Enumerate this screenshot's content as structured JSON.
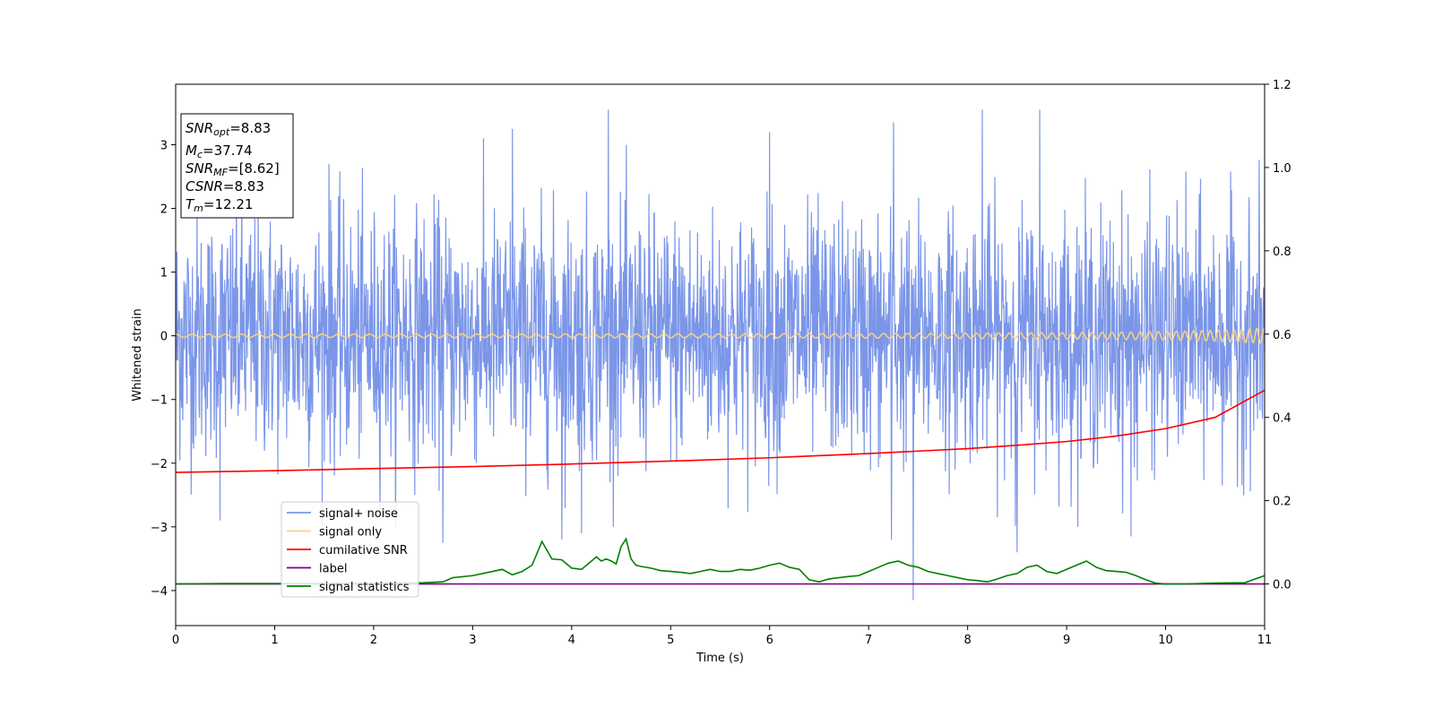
{
  "chart_data": {
    "type": "line",
    "xlabel": "Time (s)",
    "ylabel": "Whitened strain",
    "xlim": [
      0,
      11
    ],
    "ylim_left": [
      -4.55,
      3.95
    ],
    "ylim_right": [
      -0.1,
      1.2
    ],
    "x_ticks": [
      0,
      1,
      2,
      3,
      4,
      5,
      6,
      7,
      8,
      9,
      10,
      11
    ],
    "y_ticks_left": [
      -4,
      -3,
      -2,
      -1,
      0,
      1,
      2,
      3
    ],
    "y_tick_labels_left": [
      "−4",
      "−3",
      "−2",
      "−1",
      "0",
      "1",
      "2",
      "3"
    ],
    "y_ticks_right": [
      0.0,
      0.2,
      0.4,
      0.6,
      0.8,
      1.0,
      1.2
    ],
    "y_tick_labels_right": [
      "0.0",
      "0.2",
      "0.4",
      "0.6",
      "0.8",
      "1.0",
      "1.2"
    ],
    "info_box": {
      "snr_opt": {
        "symbol": "SNR",
        "sub": "opt",
        "value": "=8.83"
      },
      "mc": {
        "symbol": "M",
        "sub": "c",
        "value": "=37.74"
      },
      "snr_mf": {
        "symbol": "SNR",
        "sub": "MF",
        "value": "=[8.62]"
      },
      "csnr": {
        "symbol": "CSNR",
        "value": "=8.83"
      },
      "tm": {
        "symbol": "T",
        "sub": "m",
        "value": "=12.21"
      }
    },
    "legend": {
      "placement": "lower-left",
      "entries": [
        {
          "label": "signal+ noise",
          "color": "#7b96e8"
        },
        {
          "label": "signal only",
          "color": "#ffd27f"
        },
        {
          "label": "cumilative SNR",
          "color": "#ff0000"
        },
        {
          "label": "label",
          "color": "#800080"
        },
        {
          "label": "signal statistics",
          "color": "#008000"
        }
      ]
    },
    "series": [
      {
        "name": "signal+ noise",
        "axis": "left",
        "color": "#7b96e8",
        "description": "whitened strain, noise band ~ +/-2, spikes",
        "noise_sigma": 0.95,
        "spikes": [
          {
            "x": 4.37,
            "y": 3.55
          },
          {
            "x": 8.15,
            "y": 3.55
          },
          {
            "x": 8.73,
            "y": 3.55
          },
          {
            "x": 1.55,
            "y": 2.7
          },
          {
            "x": 3.4,
            "y": 3.25
          },
          {
            "x": 7.25,
            "y": 3.35
          },
          {
            "x": 6.0,
            "y": 3.2
          },
          {
            "x": 7.45,
            "y": -4.15
          },
          {
            "x": 8.5,
            "y": -3.4
          },
          {
            "x": 2.7,
            "y": -3.25
          },
          {
            "x": 3.9,
            "y": -3.2
          },
          {
            "x": 9.65,
            "y": -3.15
          },
          {
            "x": 7.23,
            "y": -3.2
          },
          {
            "x": 0.45,
            "y": -2.9
          },
          {
            "x": 4.1,
            "y": -3.1
          }
        ]
      },
      {
        "name": "signal only",
        "axis": "left",
        "color": "#ffd27f",
        "description": "chirp, amplitude grows to ~0.12 at 11 s"
      },
      {
        "name": "cumilative SNR",
        "axis": "right",
        "color": "#ff0000",
        "x": [
          0,
          1,
          2,
          3,
          4,
          5,
          6,
          7,
          8,
          8.5,
          9,
          9.5,
          10,
          10.5,
          11
        ],
        "y": [
          0.268,
          0.272,
          0.277,
          0.282,
          0.288,
          0.295,
          0.303,
          0.313,
          0.325,
          0.333,
          0.342,
          0.355,
          0.373,
          0.4,
          0.465
        ]
      },
      {
        "name": "label",
        "axis": "right",
        "color": "#800080",
        "x": [
          0,
          11
        ],
        "y": [
          0.0,
          0.0
        ]
      },
      {
        "name": "signal statistics",
        "axis": "right",
        "color": "#008000",
        "x": [
          0,
          0.5,
          1,
          1.5,
          2,
          2.5,
          2.7,
          2.8,
          3.0,
          3.1,
          3.3,
          3.4,
          3.5,
          3.6,
          3.7,
          3.8,
          3.9,
          4.0,
          4.1,
          4.15,
          4.2,
          4.25,
          4.3,
          4.35,
          4.4,
          4.45,
          4.5,
          4.55,
          4.6,
          4.65,
          4.7,
          4.8,
          4.9,
          5.0,
          5.1,
          5.2,
          5.3,
          5.4,
          5.5,
          5.6,
          5.7,
          5.8,
          5.9,
          6.0,
          6.1,
          6.2,
          6.3,
          6.4,
          6.5,
          6.6,
          6.7,
          6.8,
          6.9,
          7.0,
          7.1,
          7.2,
          7.3,
          7.4,
          7.5,
          7.6,
          7.7,
          7.8,
          7.9,
          8.0,
          8.1,
          8.2,
          8.3,
          8.4,
          8.5,
          8.6,
          8.7,
          8.8,
          8.9,
          9.0,
          9.1,
          9.2,
          9.3,
          9.4,
          9.5,
          9.6,
          9.7,
          9.8,
          9.9,
          10.0,
          10.2,
          10.5,
          10.8,
          11.0
        ],
        "y": [
          0.0,
          0.001,
          0.001,
          0.001,
          0.002,
          0.003,
          0.005,
          0.015,
          0.02,
          0.025,
          0.035,
          0.022,
          0.03,
          0.045,
          0.102,
          0.06,
          0.058,
          0.038,
          0.035,
          0.045,
          0.055,
          0.065,
          0.055,
          0.06,
          0.055,
          0.048,
          0.09,
          0.108,
          0.06,
          0.045,
          0.042,
          0.038,
          0.032,
          0.03,
          0.028,
          0.025,
          0.03,
          0.035,
          0.03,
          0.03,
          0.035,
          0.033,
          0.038,
          0.045,
          0.05,
          0.04,
          0.035,
          0.01,
          0.005,
          0.012,
          0.015,
          0.018,
          0.02,
          0.03,
          0.04,
          0.05,
          0.055,
          0.045,
          0.04,
          0.03,
          0.025,
          0.02,
          0.015,
          0.01,
          0.008,
          0.005,
          0.012,
          0.02,
          0.025,
          0.04,
          0.045,
          0.03,
          0.025,
          0.035,
          0.045,
          0.055,
          0.04,
          0.032,
          0.03,
          0.028,
          0.02,
          0.01,
          0.002,
          0.0,
          0.0,
          0.002,
          0.003,
          0.02
        ]
      }
    ]
  }
}
